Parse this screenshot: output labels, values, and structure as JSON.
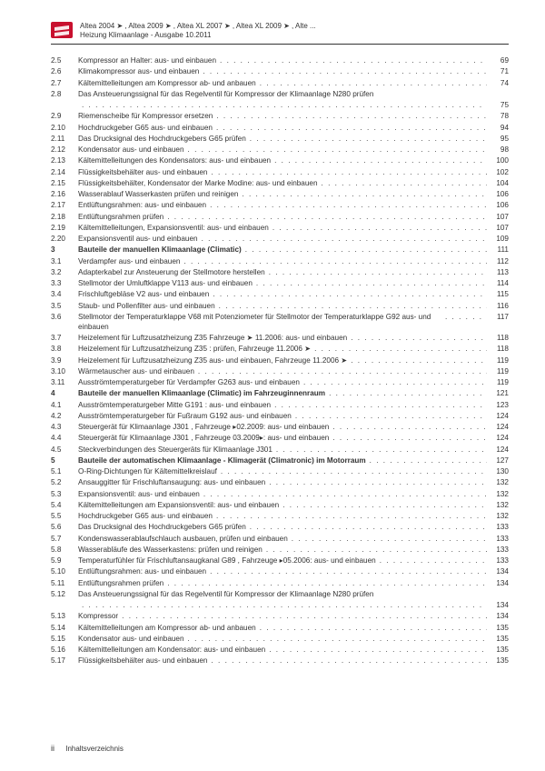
{
  "header": {
    "models": "Altea 2004 ➤ , Altea 2009 ➤ , Altea XL 2007 ➤ , Altea XL 2009 ➤ , Alte ...",
    "subtitle": "Heizung Klimaanlage - Ausgabe 10.2011"
  },
  "logo": {
    "fill": "#c8102e"
  },
  "footer": {
    "pagenum": "ii",
    "label": "Inhaltsverzeichnis"
  },
  "toc": [
    {
      "n": "2.5",
      "t": "Kompressor an Halter: aus- und einbauen",
      "p": "69"
    },
    {
      "n": "2.6",
      "t": "Klimakompressor aus- und einbauen",
      "p": "71"
    },
    {
      "n": "2.7",
      "t": "Kältemittelleitungen am Kompressor ab- und anbauen",
      "p": "74"
    },
    {
      "n": "2.8",
      "t": "Das Ansteuerungssignal für das Regelventil für Kompressor der Klimaanlage N280 prüfen",
      "p": "",
      "nopage": true
    },
    {
      "n": "",
      "t": "",
      "p": "75",
      "cont": true
    },
    {
      "n": "2.9",
      "t": "Riemenscheibe für Kompressor ersetzen",
      "p": "78"
    },
    {
      "n": "2.10",
      "t": "Hochdruckgeber G65 aus- und einbauen",
      "p": "94"
    },
    {
      "n": "2.11",
      "t": "Das Drucksignal des Hochdruckgebers G65 prüfen",
      "p": "95"
    },
    {
      "n": "2.12",
      "t": "Kondensator aus- und einbauen",
      "p": "98"
    },
    {
      "n": "2.13",
      "t": "Kältemittelleitungen des Kondensators: aus- und einbauen",
      "p": "100"
    },
    {
      "n": "2.14",
      "t": "Flüssigkeitsbehälter aus- und einbauen",
      "p": "102"
    },
    {
      "n": "2.15",
      "t": "Flüssigkeitsbehälter, Kondensator der Marke Modine: aus- und einbauen",
      "p": "104"
    },
    {
      "n": "2.16",
      "t": "Wasserablauf Wasserkasten prüfen und reinigen",
      "p": "106"
    },
    {
      "n": "2.17",
      "t": "Entlüftungsrahmen: aus- und einbauen",
      "p": "106"
    },
    {
      "n": "2.18",
      "t": "Entlüftungsrahmen prüfen",
      "p": "107"
    },
    {
      "n": "2.19",
      "t": "Kältemittelleitungen, Expansionsventil: aus- und einbauen",
      "p": "107"
    },
    {
      "n": "2.20",
      "t": "Expansionsventil aus- und einbauen",
      "p": "109"
    },
    {
      "n": "3",
      "t": "Bauteile der manuellen Klimaanlage (Climatic)",
      "p": "111",
      "section": true
    },
    {
      "n": "3.1",
      "t": "Verdampfer aus- und einbauen",
      "p": "112"
    },
    {
      "n": "3.2",
      "t": "Adapterkabel zur Ansteuerung der Stellmotore herstellen",
      "p": "113"
    },
    {
      "n": "3.3",
      "t": "Stellmotor der Umluftklappe V113 aus- und einbauen",
      "p": "114"
    },
    {
      "n": "3.4",
      "t": "Frischluftgebläse V2 aus- und einbauen",
      "p": "115"
    },
    {
      "n": "3.5",
      "t": "Staub- und Pollenfilter aus- und einbauen",
      "p": "116"
    },
    {
      "n": "3.6",
      "t": "Stellmotor der Temperaturklappe V68 mit Potenziometer für Stellmotor der Temperaturklappe G92 aus- und einbauen",
      "p": "117",
      "wrap": true
    },
    {
      "n": "3.7",
      "t": "Heizelement für Luftzusatzheizung Z35 Fahrzeuge ➤ 11.2006: aus- und einbauen",
      "p": "118"
    },
    {
      "n": "3.8",
      "t": "Heizelement für Luftzusatzheizung Z35 : prüfen, Fahrzeuge 11.2006 ➤",
      "p": "118"
    },
    {
      "n": "3.9",
      "t": "Heizelement für Luftzusatzheizung Z35 aus- und einbauen, Fahrzeuge 11.2006 ➤",
      "p": "119"
    },
    {
      "n": "3.10",
      "t": "Wärmetauscher aus- und einbauen",
      "p": "119"
    },
    {
      "n": "3.11",
      "t": "Ausströmtemperaturgeber für Verdampfer G263 aus- und einbauen",
      "p": "119"
    },
    {
      "n": "4",
      "t": "Bauteile der manuellen Klimaanlage (Climatic) im Fahrzeuginnenraum",
      "p": "121",
      "section": true
    },
    {
      "n": "4.1",
      "t": "Ausströmtemperaturgeber Mitte G191 : aus- und einbauen",
      "p": "123"
    },
    {
      "n": "4.2",
      "t": "Ausströmtemperaturgeber für Fußraum G192 aus- und einbauen",
      "p": "124"
    },
    {
      "n": "4.3",
      "t": "Steuergerät für Klimaanlage J301 , Fahrzeuge ▸02.2009: aus- und einbauen",
      "p": "124"
    },
    {
      "n": "4.4",
      "t": "Steuergerät für Klimaanlage J301 , Fahrzeuge 03.2009▸: aus- und einbauen",
      "p": "124"
    },
    {
      "n": "4.5",
      "t": "Steckverbindungen des Steuergeräts für Klimaanlage J301",
      "p": "124"
    },
    {
      "n": "5",
      "t": "Bauteile der automatischen Klimaanlage - Klimagerät (Climatronic) im Motorraum",
      "p": "127",
      "section": true
    },
    {
      "n": "5.1",
      "t": "O-Ring-Dichtungen für Kältemittelkreislauf",
      "p": "130"
    },
    {
      "n": "5.2",
      "t": "Ansauggitter für Frischluftansaugung: aus- und einbauen",
      "p": "132"
    },
    {
      "n": "5.3",
      "t": "Expansionsventil: aus- und einbauen",
      "p": "132"
    },
    {
      "n": "5.4",
      "t": "Kältemittelleitungen am Expansionsventil: aus- und einbauen",
      "p": "132"
    },
    {
      "n": "5.5",
      "t": "Hochdruckgeber G65 aus- und einbauen",
      "p": "132"
    },
    {
      "n": "5.6",
      "t": "Das Drucksignal des Hochdruckgebers G65 prüfen",
      "p": "133"
    },
    {
      "n": "5.7",
      "t": "Kondenswasserablaufschlauch ausbauen, prüfen und einbauen",
      "p": "133"
    },
    {
      "n": "5.8",
      "t": "Wasserabläufe des Wasserkastens: prüfen und reinigen",
      "p": "133"
    },
    {
      "n": "5.9",
      "t": "Temperaturfühler für Frischluftansaugkanal G89 , Fahrzeuge ▸05.2006: aus- und einbauen",
      "p": "133",
      "wrap": true
    },
    {
      "n": "5.10",
      "t": "Entlüftungsrahmen: aus- und einbauen",
      "p": "134"
    },
    {
      "n": "5.11",
      "t": "Entlüftungsrahmen prüfen",
      "p": "134"
    },
    {
      "n": "5.12",
      "t": "Das Ansteuerungssignal für das Regelventil für Kompressor der Klimaanlage N280 prüfen",
      "p": "",
      "nopage": true
    },
    {
      "n": "",
      "t": "",
      "p": "134",
      "cont": true
    },
    {
      "n": "5.13",
      "t": "Kompressor",
      "p": "134"
    },
    {
      "n": "5.14",
      "t": "Kältemittelleitungen am Kompressor ab- und anbauen",
      "p": "135"
    },
    {
      "n": "5.15",
      "t": "Kondensator aus- und einbauen",
      "p": "135"
    },
    {
      "n": "5.16",
      "t": "Kältemittelleitungen am Kondensator: aus- und einbauen",
      "p": "135"
    },
    {
      "n": "5.17",
      "t": "Flüssigkeitsbehälter aus- und einbauen",
      "p": "135"
    }
  ]
}
